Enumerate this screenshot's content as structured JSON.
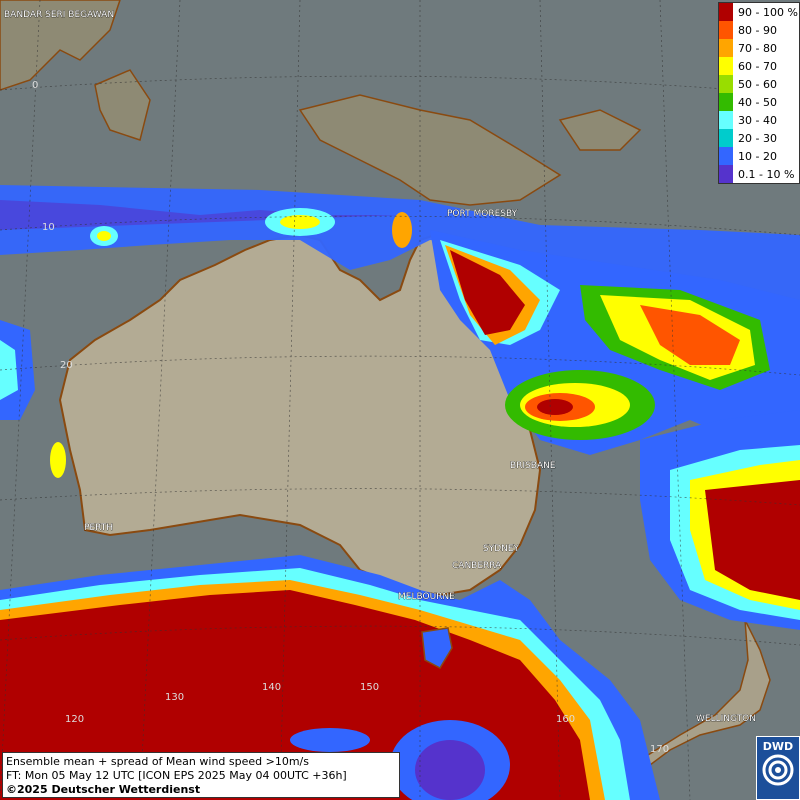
{
  "legend": {
    "entries": [
      {
        "label": "90 - 100 %",
        "color": "#b00000"
      },
      {
        "label": "80 - 90",
        "color": "#ff5500"
      },
      {
        "label": "70 - 80",
        "color": "#ffa500"
      },
      {
        "label": "60 - 70",
        "color": "#ffff00"
      },
      {
        "label": "50 - 60",
        "color": "#99dd00"
      },
      {
        "label": "40 - 50",
        "color": "#33bb00"
      },
      {
        "label": "30 - 40",
        "color": "#66ffff"
      },
      {
        "label": "20 - 30",
        "color": "#00cccc"
      },
      {
        "label": "10 - 20",
        "color": "#3366ff"
      },
      {
        "label": "0.1 - 10 %",
        "color": "#5533cc"
      }
    ]
  },
  "cities": {
    "bandar": "BANDAR SERI BEGAWAN",
    "port_moresby": "PORT MORESBY",
    "brisbane": "BRISBANE",
    "sydney": "SYDNEY",
    "canberra": "CANBERRA",
    "melbourne": "MELBOURNE",
    "perth": "PERTH",
    "wellington": "WELLINGTON"
  },
  "grid_labels": {
    "lat_0": "0",
    "lat_10": "10",
    "lat_20": "20",
    "lon_120": "120",
    "lon_130": "130",
    "lon_140": "140",
    "lon_150": "150",
    "lon_160": "160",
    "lon_170": "170"
  },
  "info": {
    "line1": "Ensemble mean + spread of Mean wind speed >10m/s",
    "line2": "FT: Mon 05 May 12 UTC [ICON EPS 2025 May 04 00UTC +36h]",
    "line3": "©2025 Deutscher Wetterdienst"
  },
  "logo": {
    "text": "DWD"
  }
}
